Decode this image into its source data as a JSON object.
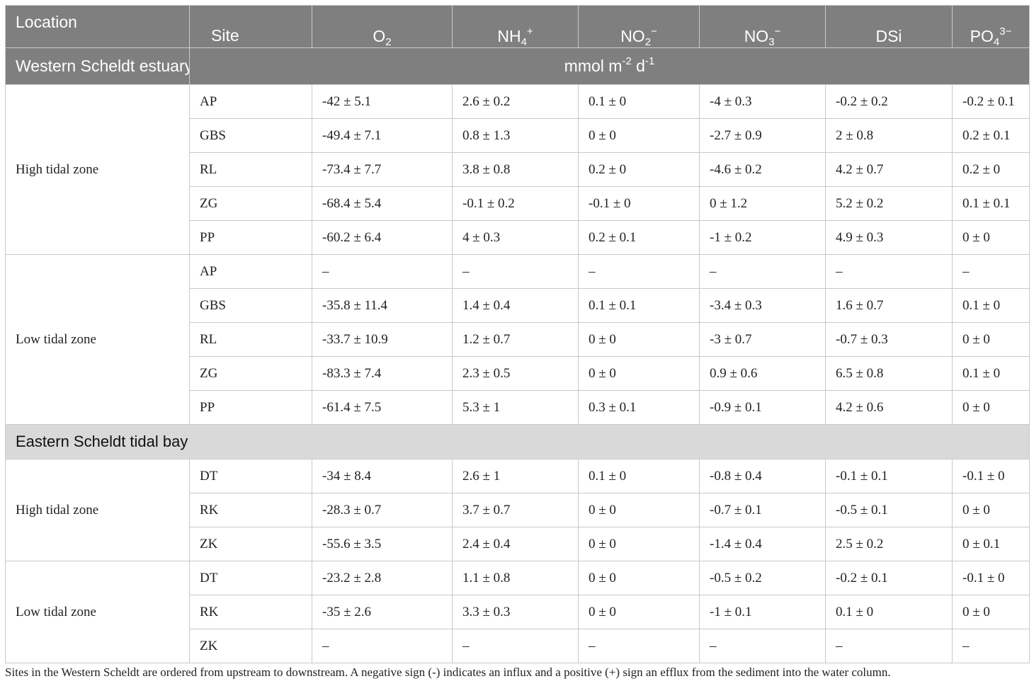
{
  "table": {
    "headers": {
      "location": "Location",
      "site": "Site",
      "o2": {
        "base": "O",
        "sub": "2"
      },
      "nh4": {
        "base": "NH",
        "sub": "4",
        "sup": "+"
      },
      "no2": {
        "base": "NO",
        "sub": "2",
        "sup": "−"
      },
      "no3": {
        "base": "NO",
        "sub": "3",
        "sup": "−"
      },
      "dsi": {
        "base": "DSi"
      },
      "po4": {
        "base": "PO",
        "sub": "4",
        "sup": "3−"
      }
    },
    "units": {
      "base1": "mmol m",
      "sup1": "-2",
      "base2": " d",
      "sup2": "-1"
    },
    "sections": [
      {
        "title": "Western Scheldt estuary",
        "groups": [
          {
            "zone": "High tidal zone",
            "rows": [
              {
                "site": "AP",
                "o2": "-42 ± 5.1",
                "nh4": "2.6 ± 0.2",
                "no2": "0.1 ± 0",
                "no3": "-4 ± 0.3",
                "dsi": "-0.2 ± 0.2",
                "po4": "-0.2 ± 0.1"
              },
              {
                "site": "GBS",
                "o2": "-49.4 ± 7.1",
                "nh4": "0.8 ± 1.3",
                "no2": "0 ± 0",
                "no3": "-2.7 ± 0.9",
                "dsi": "2 ± 0.8",
                "po4": "0.2 ± 0.1"
              },
              {
                "site": "RL",
                "o2": "-73.4 ± 7.7",
                "nh4": "3.8 ± 0.8",
                "no2": "0.2 ± 0",
                "no3": "-4.6 ± 0.2",
                "dsi": "4.2 ± 0.7",
                "po4": "0.2 ± 0"
              },
              {
                "site": "ZG",
                "o2": "-68.4 ± 5.4",
                "nh4": "-0.1 ± 0.2",
                "no2": "-0.1 ± 0",
                "no3": "0 ± 1.2",
                "dsi": "5.2 ± 0.2",
                "po4": "0.1 ± 0.1"
              },
              {
                "site": "PP",
                "o2": "-60.2 ± 6.4",
                "nh4": "4 ± 0.3",
                "no2": "0.2 ± 0.1",
                "no3": "-1 ± 0.2",
                "dsi": "4.9 ± 0.3",
                "po4": "0 ± 0"
              }
            ]
          },
          {
            "zone": "Low tidal zone",
            "rows": [
              {
                "site": "AP",
                "o2": "–",
                "nh4": "–",
                "no2": "–",
                "no3": "–",
                "dsi": "–",
                "po4": "–"
              },
              {
                "site": "GBS",
                "o2": "-35.8 ± 11.4",
                "nh4": "1.4 ± 0.4",
                "no2": "0.1 ± 0.1",
                "no3": "-3.4 ± 0.3",
                "dsi": "1.6 ± 0.7",
                "po4": "0.1 ± 0"
              },
              {
                "site": "RL",
                "o2": "-33.7 ± 10.9",
                "nh4": "1.2 ± 0.7",
                "no2": "0 ± 0",
                "no3": "-3 ± 0.7",
                "dsi": "-0.7 ± 0.3",
                "po4": "0 ± 0"
              },
              {
                "site": "ZG",
                "o2": "-83.3 ± 7.4",
                "nh4": "2.3 ± 0.5",
                "no2": "0 ± 0",
                "no3": "0.9 ± 0.6",
                "dsi": "6.5 ± 0.8",
                "po4": "0.1 ± 0"
              },
              {
                "site": "PP",
                "o2": "-61.4 ± 7.5",
                "nh4": "5.3 ± 1",
                "no2": "0.3 ± 0.1",
                "no3": "-0.9 ± 0.1",
                "dsi": "4.2 ± 0.6",
                "po4": "0 ± 0"
              }
            ]
          }
        ]
      },
      {
        "title": "Eastern Scheldt tidal bay",
        "groups": [
          {
            "zone": "High tidal zone",
            "rows": [
              {
                "site": "DT",
                "o2": "-34 ± 8.4",
                "nh4": "2.6 ± 1",
                "no2": "0.1 ± 0",
                "no3": "-0.8 ± 0.4",
                "dsi": "-0.1 ± 0.1",
                "po4": "-0.1 ± 0"
              },
              {
                "site": "RK",
                "o2": "-28.3 ± 0.7",
                "nh4": "3.7 ± 0.7",
                "no2": "0 ± 0",
                "no3": "-0.7 ± 0.1",
                "dsi": "-0.5 ± 0.1",
                "po4": "0 ± 0"
              },
              {
                "site": "ZK",
                "o2": "-55.6 ± 3.5",
                "nh4": "2.4 ± 0.4",
                "no2": "0 ± 0",
                "no3": "-1.4 ± 0.4",
                "dsi": "2.5 ± 0.2",
                "po4": "0 ± 0.1"
              }
            ]
          },
          {
            "zone": "Low tidal zone",
            "rows": [
              {
                "site": "DT",
                "o2": "-23.2 ± 2.8",
                "nh4": "1.1 ± 0.8",
                "no2": "0 ± 0",
                "no3": "-0.5 ± 0.2",
                "dsi": "-0.2 ± 0.1",
                "po4": "-0.1 ± 0"
              },
              {
                "site": "RK",
                "o2": "-35 ± 2.6",
                "nh4": "3.3 ± 0.3",
                "no2": "0 ± 0",
                "no3": "-1 ± 0.1",
                "dsi": "0.1 ± 0",
                "po4": "0 ± 0"
              },
              {
                "site": "ZK",
                "o2": "–",
                "nh4": "–",
                "no2": "–",
                "no3": "–",
                "dsi": "–",
                "po4": "–"
              }
            ]
          }
        ]
      }
    ]
  },
  "footnote": "Sites in the Western Scheldt are ordered from upstream to downstream. A negative sign (-) indicates an influx and a positive (+) sign an efflux from the sediment into the water column."
}
